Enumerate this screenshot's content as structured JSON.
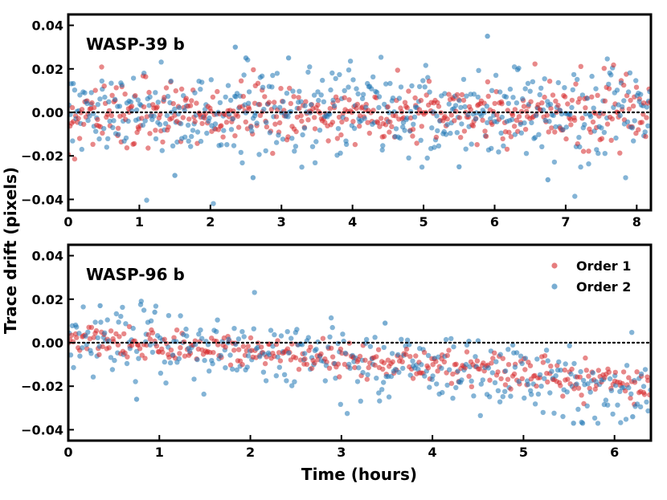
{
  "chart_data": [
    {
      "type": "scatter",
      "title": "WASP-39 b",
      "xlabel": "",
      "ylabel": "Trace drift (pixels)",
      "xlim": [
        0,
        8.2
      ],
      "ylim": [
        -0.045,
        0.045
      ],
      "xticks": [
        0,
        1,
        2,
        3,
        4,
        5,
        6,
        7,
        8
      ],
      "yticks": [
        -0.04,
        -0.02,
        0.0,
        0.02,
        0.04
      ],
      "ytick_labels": [
        "−0.04",
        "−0.02",
        "0.00",
        "0.02",
        "0.04"
      ],
      "reference_line": 0.0,
      "series": [
        {
          "name": "Order 1",
          "color": "#d62728",
          "n_points": 480,
          "trend": [
            [
              0,
              0.0
            ],
            [
              8.2,
              0.0
            ]
          ],
          "scatter_sd": 0.007
        },
        {
          "name": "Order 2",
          "color": "#1f77b4",
          "n_points": 480,
          "trend": [
            [
              0,
              0.0
            ],
            [
              8.2,
              0.0
            ]
          ],
          "scatter_sd": 0.01,
          "notable_points": [
            [
              2.35,
              0.03
            ],
            [
              2.5,
              0.025
            ],
            [
              3.1,
              0.025
            ],
            [
              5.9,
              0.035
            ],
            [
              1.5,
              -0.029
            ],
            [
              2.6,
              -0.03
            ],
            [
              6.75,
              -0.031
            ],
            [
              5.5,
              -0.025
            ]
          ]
        }
      ]
    },
    {
      "type": "scatter",
      "title": "WASP-96 b",
      "xlabel": "Time (hours)",
      "ylabel": "Trace drift (pixels)",
      "xlim": [
        0,
        6.4
      ],
      "ylim": [
        -0.045,
        0.045
      ],
      "xticks": [
        0,
        1,
        2,
        3,
        4,
        5,
        6
      ],
      "yticks": [
        -0.04,
        -0.02,
        0.0,
        0.02,
        0.04
      ],
      "ytick_labels": [
        "−0.04",
        "−0.02",
        "0.00",
        "0.02",
        "0.04"
      ],
      "reference_line": 0.0,
      "legend": {
        "position": "top-right",
        "entries": [
          "Order 1",
          "Order 2"
        ]
      },
      "series": [
        {
          "name": "Order 1",
          "color": "#d62728",
          "n_points": 360,
          "trend": [
            [
              0,
              0.002
            ],
            [
              4.5,
              -0.012
            ],
            [
              6.4,
              -0.02
            ]
          ],
          "scatter_sd": 0.004
        },
        {
          "name": "Order 2",
          "color": "#1f77b4",
          "n_points": 360,
          "trend": [
            [
              0,
              0.002
            ],
            [
              4.5,
              -0.012
            ],
            [
              6.4,
              -0.022
            ]
          ],
          "scatter_sd": 0.008,
          "notable_points": [
            [
              0.35,
              0.017
            ],
            [
              0.95,
              0.014
            ],
            [
              3.48,
              0.009
            ],
            [
              0.75,
              -0.026
            ],
            [
              5.55,
              -0.037
            ],
            [
              5.65,
              -0.037
            ],
            [
              6.2,
              -0.034
            ]
          ]
        }
      ]
    }
  ]
}
